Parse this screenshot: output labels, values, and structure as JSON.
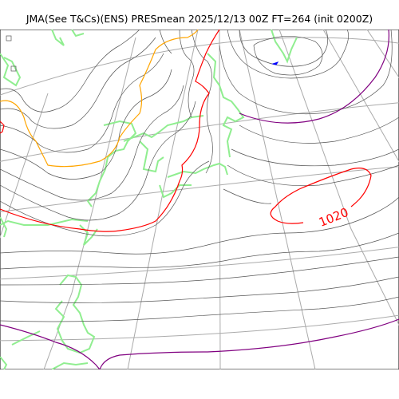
{
  "title": "JMA(See T&Cs)(ENS) PRESmean 2025/12/13 00Z FT=264 (init 0200Z)",
  "isobar_label": "1020",
  "colors": {
    "isobar": "#555555",
    "isobar_1020": "#ff0000",
    "isobar_high": "#800080",
    "isobar_low": "#ffa500",
    "coastline": "#90ee90",
    "graticule": "#aaaaaa",
    "max_marker": "#0000ff"
  }
}
